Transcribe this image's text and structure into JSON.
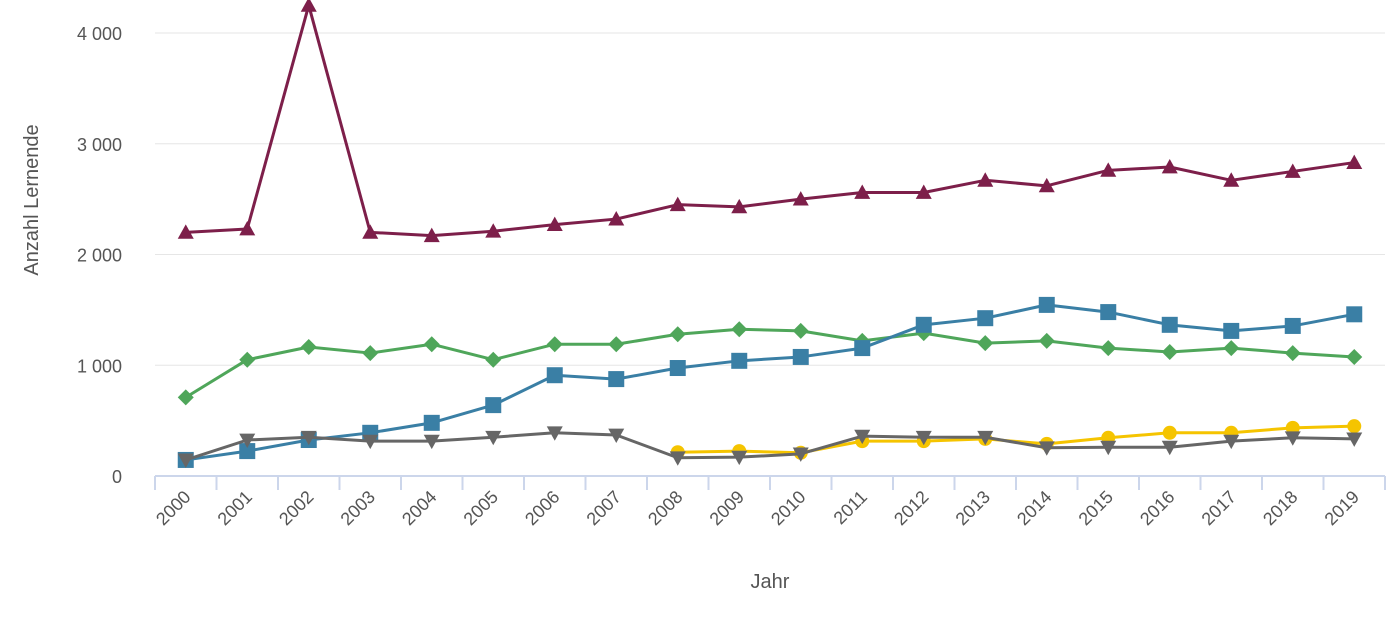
{
  "chart_data": {
    "type": "line",
    "title": "",
    "xlabel": "Jahr",
    "ylabel": "Anzahl Lernende",
    "ylim": [
      0,
      4000
    ],
    "yticks": [
      0,
      1000,
      2000,
      3000,
      4000
    ],
    "ytick_labels": [
      "0",
      "1 000",
      "2 000",
      "3 000",
      "4 000"
    ],
    "grid": true,
    "legend": "none",
    "categories": [
      "2000",
      "2001",
      "2002",
      "2003",
      "2004",
      "2005",
      "2006",
      "2007",
      "2008",
      "2009",
      "2010",
      "2011",
      "2012",
      "2013",
      "2014",
      "2015",
      "2016",
      "2017",
      "2018",
      "2019"
    ],
    "series": [
      {
        "color": "#7d1f4a",
        "marker": "triangle-up",
        "values": [
          2200,
          2230,
          4250,
          2200,
          2170,
          2210,
          2270,
          2320,
          2450,
          2430,
          2500,
          2560,
          2560,
          2670,
          2620,
          2760,
          2790,
          2670,
          2750,
          2830
        ]
      },
      {
        "color": "#4fa65a",
        "marker": "diamond",
        "values": [
          710,
          1050,
          1165,
          1110,
          1190,
          1050,
          1190,
          1190,
          1280,
          1325,
          1310,
          1220,
          1290,
          1200,
          1220,
          1155,
          1120,
          1155,
          1110,
          1075
        ]
      },
      {
        "color": "#3a7fa5",
        "marker": "square",
        "values": [
          145,
          225,
          325,
          390,
          480,
          640,
          910,
          875,
          975,
          1040,
          1075,
          1155,
          1365,
          1425,
          1545,
          1480,
          1365,
          1310,
          1355,
          1460
        ]
      },
      {
        "color": "#f5c400",
        "marker": "circle",
        "values": [
          null,
          null,
          null,
          null,
          null,
          null,
          null,
          null,
          215,
          225,
          210,
          315,
          315,
          335,
          290,
          345,
          390,
          390,
          435,
          450
        ]
      },
      {
        "color": "#666666",
        "marker": "triangle-down",
        "values": [
          145,
          325,
          350,
          315,
          315,
          350,
          390,
          370,
          165,
          170,
          200,
          360,
          350,
          350,
          255,
          260,
          260,
          315,
          345,
          335
        ]
      }
    ]
  }
}
